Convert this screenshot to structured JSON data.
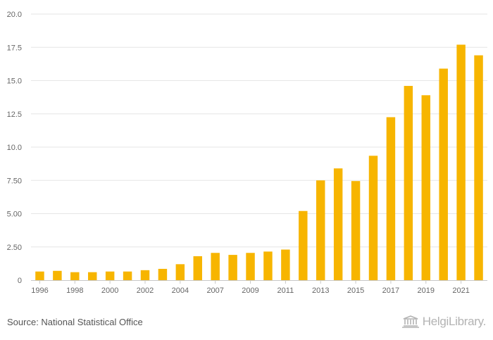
{
  "chart_data": {
    "type": "bar",
    "categories": [
      "1996",
      "1997",
      "1998",
      "1999",
      "2000",
      "2001",
      "2002",
      "2003",
      "2004",
      "2005",
      "2007",
      "2008",
      "2009",
      "2010",
      "2011",
      "2012",
      "2013",
      "2014",
      "2015",
      "2016",
      "2017",
      "2018",
      "2019",
      "2020",
      "2021",
      "2022"
    ],
    "values": [
      0.65,
      0.7,
      0.6,
      0.6,
      0.65,
      0.65,
      0.75,
      0.85,
      1.2,
      1.8,
      2.05,
      1.9,
      2.05,
      2.15,
      2.3,
      5.2,
      7.5,
      8.4,
      7.45,
      9.35,
      12.25,
      14.6,
      13.9,
      15.9,
      17.7,
      16.9
    ],
    "x_tick_labels": [
      "1996",
      "1998",
      "2000",
      "2002",
      "2004",
      "2007",
      "2009",
      "2011",
      "2013",
      "2015",
      "2017",
      "2019",
      "2021"
    ],
    "y_tick_labels": [
      "0",
      "2.50",
      "5.00",
      "7.50",
      "10.0",
      "12.5",
      "15.0",
      "17.5",
      "20.0"
    ],
    "ylim": [
      0,
      20
    ],
    "grid": true,
    "bar_color": "#F7B500",
    "title": "",
    "xlabel": "",
    "ylabel": ""
  },
  "footer": {
    "source": "Source: National Statistical Office",
    "logo_text": "HelgiLibrary."
  },
  "colors": {
    "grid": "#e6e6e6",
    "axis": "#c8c8c8",
    "tick_text": "#666666",
    "logo": "#b3b3b3"
  }
}
